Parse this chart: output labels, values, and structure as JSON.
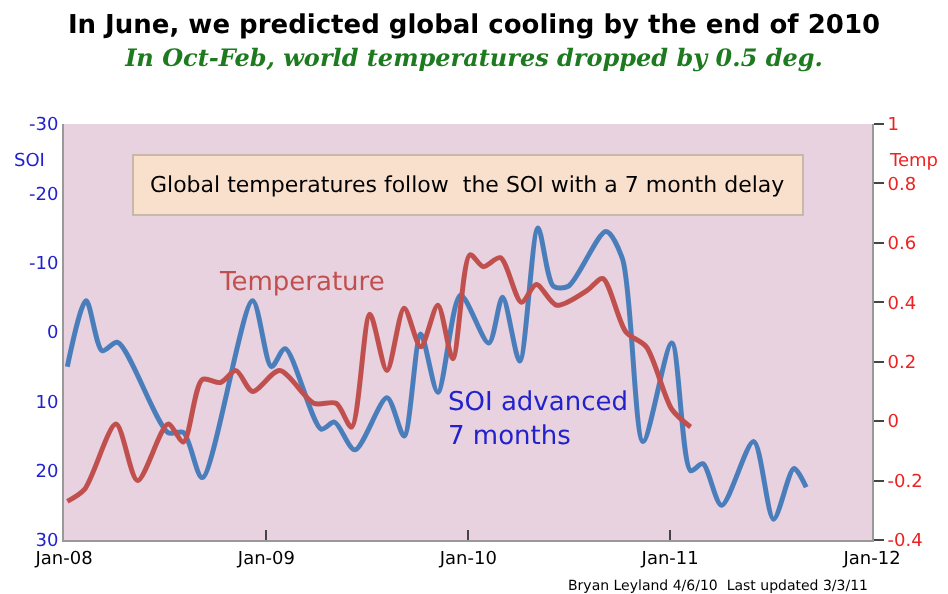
{
  "chart_data": {
    "type": "line",
    "title": "In June, we predicted global cooling by the end of 2010",
    "subtitle": "In Oct-Feb, world temperatures dropped by 0.5 deg.",
    "ylabel": "SOI",
    "y2label": "Temp",
    "annotations": [
      "Global temperatures follow  the SOI with a 7 month delay",
      "Bryan Leyland 4/6/10  Last updated 3/3/11"
    ],
    "series": [
      {
        "name": "SOI advanced\n7 months",
        "color": "#4a7ebb",
        "axis": "y",
        "x": [
          "2008-01-07",
          "2008-02-10",
          "2008-03-10",
          "2008-04-07",
          "2008-07-07",
          "2008-08-04",
          "2008-09-07",
          "2008-12-07",
          "2009-01-10",
          "2009-02-04",
          "2009-04-10",
          "2009-05-04",
          "2009-06-10",
          "2009-08-07",
          "2009-09-07",
          "2009-10-07",
          "2009-11-07",
          "2009-12-18",
          "2010-02-07",
          "2010-03-04",
          "2010-04-04",
          "2010-05-07",
          "2010-06-04",
          "2010-07-01",
          "2010-09-07",
          "2010-10-07",
          "2010-11-13",
          "2011-01-04",
          "2011-02-07",
          "2011-03-01",
          "2011-04-04",
          "2011-06-01",
          "2011-07-07",
          "2011-08-13",
          "2011-09-04"
        ],
        "values": [
          5,
          -4.5,
          2.7,
          1.5,
          14.5,
          14.5,
          21,
          -4.5,
          5,
          2.4,
          14,
          13,
          17,
          9.5,
          15,
          0.3,
          8.7,
          -5.3,
          1.6,
          -5,
          4.2,
          -15,
          -6.6,
          -6.6,
          -14.5,
          -10.5,
          15.8,
          1.6,
          20,
          19,
          25,
          15.8,
          27,
          19.7,
          22.4
        ]
      },
      {
        "name": "Temperature",
        "color": "#c0504d",
        "axis": "y2",
        "x": [
          "2008-01-07",
          "2008-02-07",
          "2008-04-04",
          "2008-05-13",
          "2008-07-07",
          "2008-08-04",
          "2008-09-07",
          "2008-10-10",
          "2008-11-07",
          "2008-12-07",
          "2009-01-25",
          "2009-03-28",
          "2009-05-07",
          "2009-06-04",
          "2009-07-07",
          "2009-08-07",
          "2009-09-07",
          "2009-10-07",
          "2009-11-07",
          "2009-12-04",
          "2010-01-04",
          "2010-01-28",
          "2010-02-28",
          "2010-04-07",
          "2010-05-04",
          "2010-06-10",
          "2010-08-04",
          "2010-09-01",
          "2010-10-13",
          "2010-11-19",
          "2011-01-04",
          "2011-02-07"
        ],
        "values": [
          -0.27,
          -0.23,
          -0.01,
          -0.2,
          -0.01,
          -0.07,
          0.14,
          0.13,
          0.17,
          0.1,
          0.17,
          0.06,
          0.06,
          -0.02,
          0.36,
          0.17,
          0.38,
          0.25,
          0.39,
          0.21,
          0.56,
          0.52,
          0.55,
          0.4,
          0.46,
          0.39,
          0.44,
          0.48,
          0.3,
          0.25,
          0.04,
          -0.02
        ]
      }
    ],
    "xlim": [
      "2008-01-01",
      "2012-01-01"
    ],
    "xticks": [
      {
        "value": "2008-01-01",
        "label": "Jan-08"
      },
      {
        "value": "2009-01-01",
        "label": "Jan-09"
      },
      {
        "value": "2010-01-01",
        "label": "Jan-10"
      },
      {
        "value": "2011-01-01",
        "label": "Jan-11"
      },
      {
        "value": "2012-01-01",
        "label": "Jan-12"
      }
    ],
    "ylim": [
      30,
      -30
    ],
    "yticks": [
      -30,
      -20,
      -10,
      0,
      10,
      20,
      30
    ],
    "y2lim": [
      -0.4,
      1
    ],
    "y2ticks": [
      -0.4,
      -0.2,
      0,
      0.2,
      0.4,
      0.6,
      0.8,
      1
    ],
    "grid": false,
    "legend": false,
    "marker": "none",
    "line_style": "solid"
  }
}
